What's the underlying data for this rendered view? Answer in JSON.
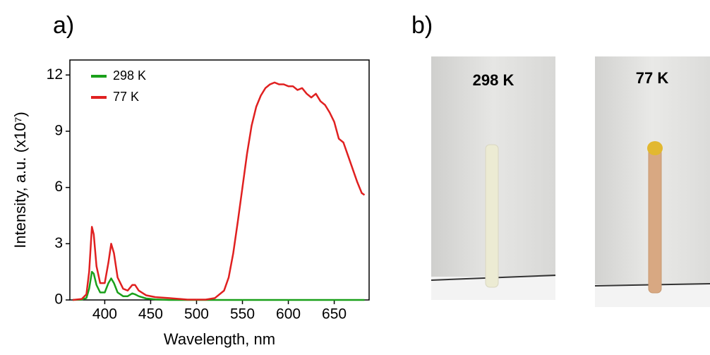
{
  "chart_data": {
    "type": "line",
    "xlabel": "Wavelength, nm",
    "ylabel": "Intensity, a.u. (x10⁷)",
    "x": [
      365,
      375,
      380,
      383,
      386,
      388,
      391,
      395,
      400,
      404,
      407,
      410,
      414,
      420,
      425,
      430,
      433,
      437,
      445,
      455,
      470,
      490,
      510,
      520,
      530,
      535,
      540,
      545,
      550,
      555,
      560,
      565,
      570,
      575,
      580,
      585,
      590,
      595,
      600,
      605,
      610,
      615,
      620,
      625,
      630,
      635,
      640,
      645,
      650,
      655,
      660,
      665,
      670,
      675,
      680,
      683
    ],
    "series": [
      {
        "name": "298 K",
        "color": "#1aa01a",
        "values": [
          0,
          0.02,
          0.1,
          0.6,
          1.5,
          1.4,
          0.8,
          0.4,
          0.4,
          0.9,
          1.15,
          0.9,
          0.4,
          0.2,
          0.2,
          0.35,
          0.3,
          0.2,
          0.08,
          0.03,
          0,
          0,
          0,
          0,
          0,
          0,
          0,
          0,
          0,
          0,
          0,
          0,
          0,
          0,
          0,
          0,
          0,
          0,
          0,
          0,
          0,
          0,
          0,
          0,
          0,
          0,
          0,
          0,
          0,
          0,
          0,
          0,
          0,
          0,
          0,
          0
        ]
      },
      {
        "name": "77 K",
        "color": "#e02020",
        "values": [
          0,
          0.05,
          0.3,
          1.5,
          3.9,
          3.5,
          1.8,
          0.9,
          0.9,
          2,
          3,
          2.5,
          1.2,
          0.6,
          0.5,
          0.8,
          0.8,
          0.5,
          0.25,
          0.15,
          0.1,
          0.02,
          0.02,
          0.1,
          0.5,
          1.2,
          2.5,
          4.2,
          6,
          7.8,
          9.3,
          10.3,
          10.9,
          11.3,
          11.5,
          11.6,
          11.5,
          11.5,
          11.4,
          11.4,
          11.2,
          11.3,
          11,
          10.8,
          11,
          10.6,
          10.4,
          10,
          9.5,
          8.6,
          8.4,
          7.7,
          7,
          6.3,
          5.7,
          5.6
        ]
      }
    ],
    "xlim": [
      362,
      688
    ],
    "ylim": [
      0,
      12.8
    ],
    "xticks": [
      400,
      450,
      500,
      550,
      600,
      650
    ],
    "yticks": [
      0,
      3,
      6,
      9,
      12
    ],
    "grid": false,
    "legend": "upper-left"
  },
  "figure": {
    "panel_labels": [
      "a)",
      "b)"
    ],
    "photos": [
      {
        "label": "298 K"
      },
      {
        "label": "77 K"
      }
    ]
  }
}
